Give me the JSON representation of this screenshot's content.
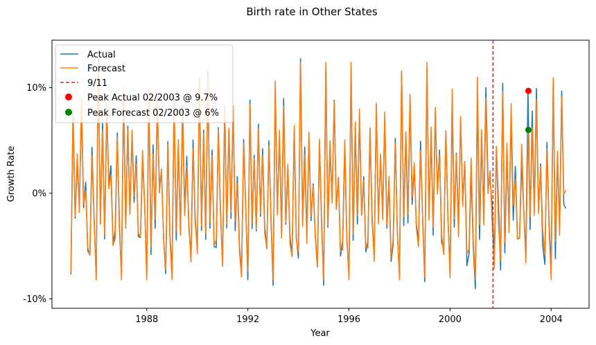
{
  "chart_data": {
    "type": "line",
    "title": "Birth rate in Other States",
    "xlabel": "Year",
    "ylabel": "Growth Rate",
    "x_start": "1985-01",
    "x_end": "2004-08",
    "xlim": [
      1984.25,
      2005.5
    ],
    "ylim": [
      -10.9,
      14.5
    ],
    "x_ticks": [
      {
        "value": 1988,
        "label": "1988"
      },
      {
        "value": 1992,
        "label": "1992"
      },
      {
        "value": 1996,
        "label": "1996"
      },
      {
        "value": 2000,
        "label": "2000"
      },
      {
        "value": 2004,
        "label": "2004"
      }
    ],
    "y_ticks": [
      {
        "value": -10,
        "label": "-10%"
      },
      {
        "value": 0,
        "label": "0%"
      },
      {
        "value": 10,
        "label": "10%"
      }
    ],
    "grid": false,
    "legend_position": "top-left",
    "series": [
      {
        "name": "Actual",
        "color": "#1f77b4"
      },
      {
        "name": "Forecast",
        "color": "#ff7f0e"
      }
    ],
    "event_line": {
      "name": "9/11",
      "x": 2001.7,
      "color": "#d62728",
      "style": "dashed"
    },
    "peaks": [
      {
        "name": "Peak Actual 02/2003 @ 9.7%",
        "x": 2003.1,
        "y": 9.7,
        "color": "#ff0000"
      },
      {
        "name": "Peak Forecast 02/2003 @ 6%",
        "x": 2003.1,
        "y": 6.0,
        "color": "#008000"
      }
    ]
  }
}
